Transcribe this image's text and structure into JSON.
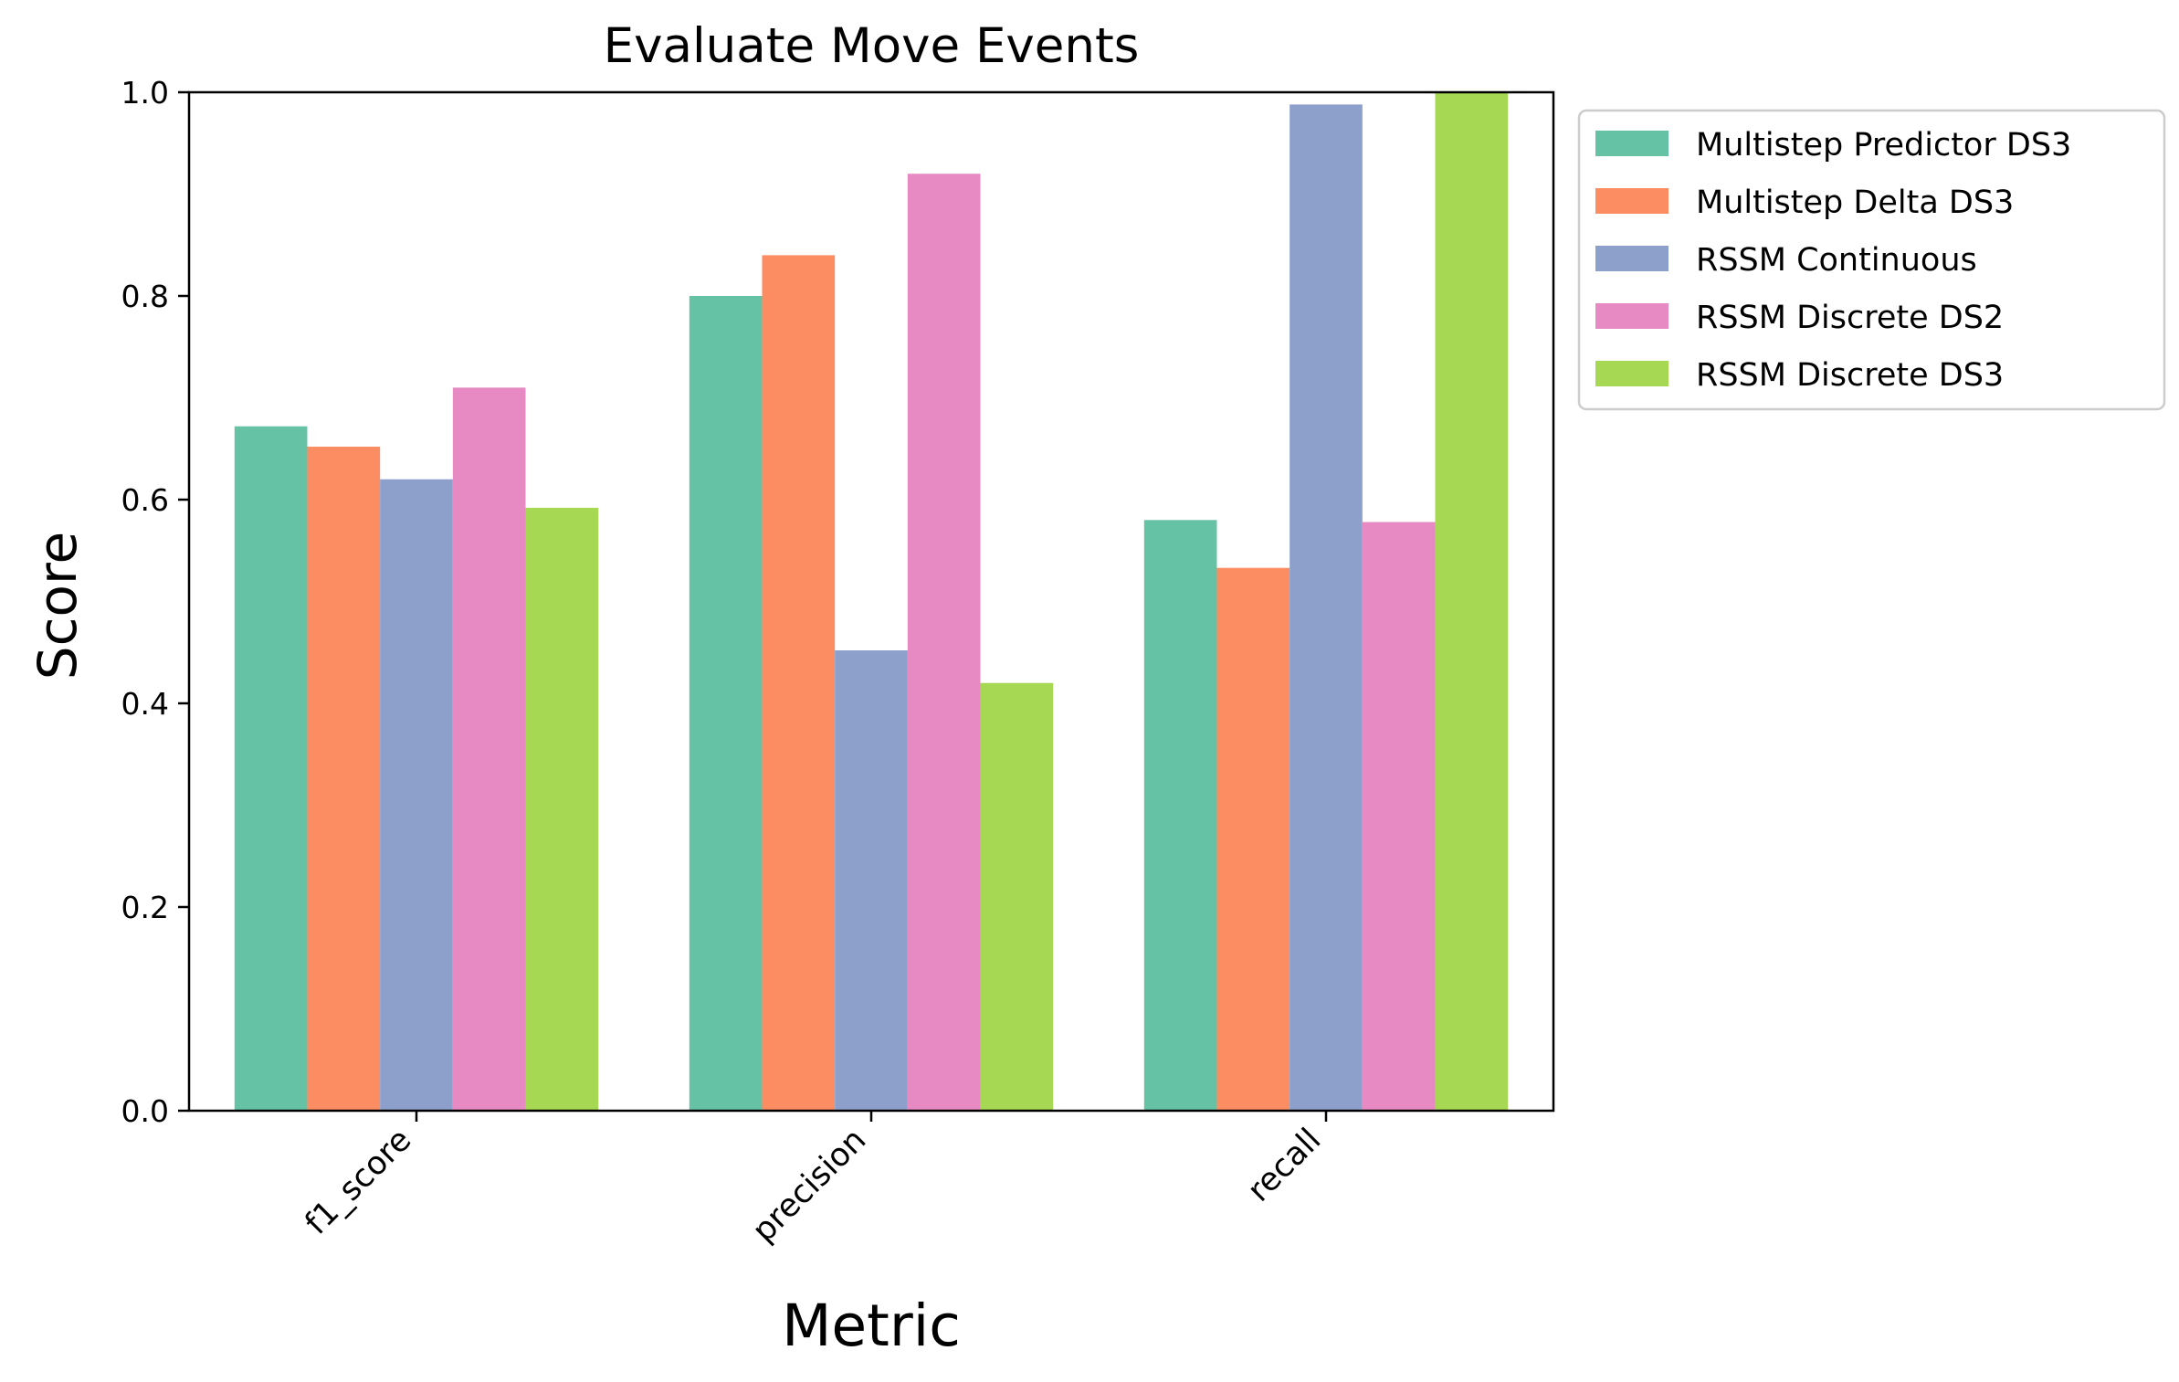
{
  "chart_data": {
    "type": "bar",
    "title": "Evaluate Move Events",
    "xlabel": "Metric",
    "ylabel": "Score",
    "categories": [
      "f1_score",
      "precision",
      "recall"
    ],
    "ylim": [
      0,
      1.0
    ],
    "yticks": [
      "0.0",
      "0.2",
      "0.4",
      "0.6",
      "0.8",
      "1.0"
    ],
    "grid": false,
    "legend_position": "outside-top-right",
    "series": [
      {
        "name": "Multistep Predictor DS3",
        "color": "#66c2a5",
        "values": [
          0.672,
          0.8,
          0.58
        ]
      },
      {
        "name": "Multistep Delta DS3",
        "color": "#fc8d62",
        "values": [
          0.652,
          0.84,
          0.533
        ]
      },
      {
        "name": "RSSM Continuous",
        "color": "#8da0cb",
        "values": [
          0.62,
          0.452,
          0.988
        ]
      },
      {
        "name": "RSSM Discrete DS2",
        "color": "#e78ac3",
        "values": [
          0.71,
          0.92,
          0.578
        ]
      },
      {
        "name": "RSSM Discrete DS3",
        "color": "#a6d854",
        "values": [
          0.592,
          0.42,
          1.0
        ]
      }
    ]
  }
}
